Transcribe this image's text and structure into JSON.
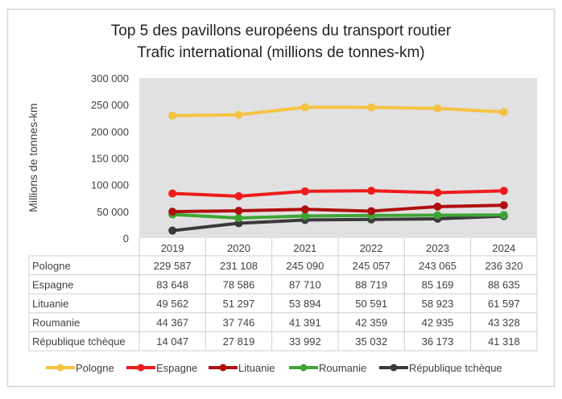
{
  "chart_data": {
    "type": "line",
    "title": [
      "Top 5 des pavillons européens du transport routier",
      "Trafic international (millions de tonnes-km)"
    ],
    "xlabel": "",
    "ylabel": "Millions de tonnes-km",
    "ylim": [
      0,
      300000
    ],
    "yticks": [
      0,
      50000,
      100000,
      150000,
      200000,
      250000,
      300000
    ],
    "ytick_labels": [
      "0",
      "50 000",
      "100 000",
      "150 000",
      "200 000",
      "250 000",
      "300 000"
    ],
    "grid": false,
    "legend": "bottom",
    "categories": [
      "2019",
      "2020",
      "2021",
      "2022",
      "2023",
      "2024"
    ],
    "series": [
      {
        "name": "Pologne",
        "color": "#F5C342",
        "values": [
          229587,
          231108,
          245090,
          245057,
          243065,
          236320
        ],
        "labels": [
          "229 587",
          "231 108",
          "245 090",
          "245 057",
          "243 065",
          "236 320"
        ]
      },
      {
        "name": "Espagne",
        "color": "#EE1C1C",
        "values": [
          83648,
          78586,
          87710,
          88719,
          85169,
          88635
        ],
        "labels": [
          "83 648",
          "78 586",
          "87 710",
          "88 719",
          "85 169",
          "88 635"
        ]
      },
      {
        "name": "Lituanie",
        "color": "#B00F0F",
        "values": [
          49562,
          51297,
          53894,
          50591,
          58923,
          61597
        ],
        "labels": [
          "49 562",
          "51 297",
          "53 894",
          "50 591",
          "58 923",
          "61 597"
        ]
      },
      {
        "name": "Roumanie",
        "color": "#3EA535",
        "values": [
          44367,
          37746,
          41391,
          42359,
          42935,
          43328
        ],
        "labels": [
          "44 367",
          "37 746",
          "41 391",
          "42 359",
          "42 935",
          "43 328"
        ]
      },
      {
        "name": "République tchèque",
        "color": "#3A3A3A",
        "values": [
          14047,
          27819,
          33992,
          35032,
          36173,
          41318
        ],
        "labels": [
          "14 047",
          "27 819",
          "33 992",
          "35 032",
          "36 173",
          "41 318"
        ]
      }
    ],
    "plot_background": "#E1E1E1",
    "data_table": true
  }
}
